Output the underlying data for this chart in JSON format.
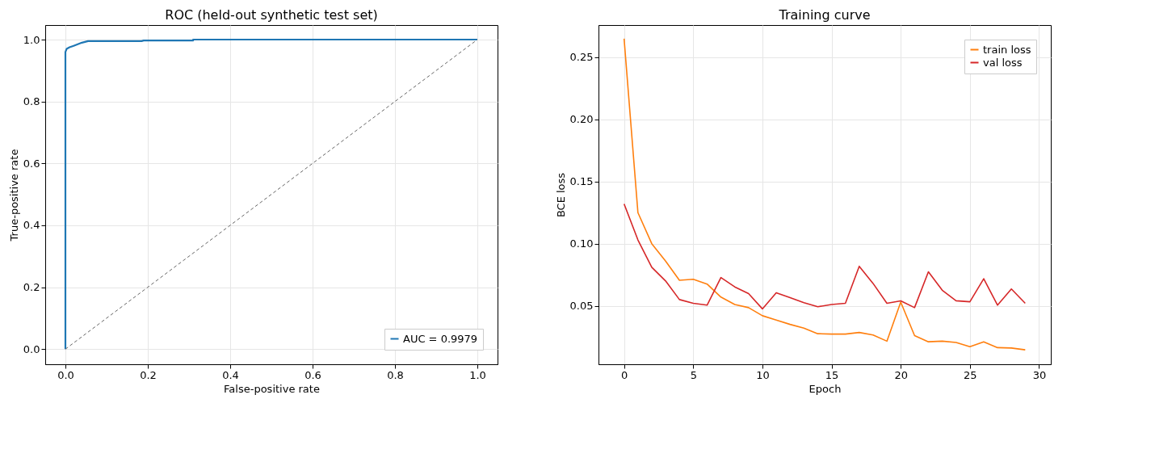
{
  "chart_data": [
    {
      "type": "line",
      "title": "ROC (held-out synthetic test set)",
      "xlabel": "False-positive rate",
      "ylabel": "True-positive rate",
      "xlim": [
        -0.049,
        1.049
      ],
      "ylim": [
        -0.049,
        1.047
      ],
      "xticks": [
        {
          "value": 0,
          "label": "0.0"
        },
        {
          "value": 0.2,
          "label": "0.2"
        },
        {
          "value": 0.4,
          "label": "0.4"
        },
        {
          "value": 0.6,
          "label": "0.6"
        },
        {
          "value": 0.8,
          "label": "0.8"
        },
        {
          "value": 1,
          "label": "1.0"
        }
      ],
      "yticks": [
        {
          "value": 0,
          "label": "0.0"
        },
        {
          "value": 0.2,
          "label": "0.2"
        },
        {
          "value": 0.4,
          "label": "0.4"
        },
        {
          "value": 0.6,
          "label": "0.6"
        },
        {
          "value": 0.8,
          "label": "0.8"
        },
        {
          "value": 1,
          "label": "1.0"
        }
      ],
      "grid": true,
      "legend": "bottom right",
      "series": [
        {
          "name": "AUC = 0.9979",
          "color": "#1f77b4",
          "x": [
            0,
            0,
            0.003,
            0.01,
            0.02,
            0.03,
            0.04,
            0.055,
            0.185,
            0.19,
            0.31,
            0.31,
            1
          ],
          "values": [
            0,
            0.96,
            0.97,
            0.975,
            0.98,
            0.985,
            0.99,
            0.995,
            0.995,
            0.997,
            0.997,
            1.0,
            1.0
          ]
        },
        {
          "color": "#666666",
          "line_style": "dashed",
          "x": [
            0,
            1
          ],
          "values": [
            0,
            1
          ]
        }
      ]
    },
    {
      "type": "line",
      "title": "Training curve",
      "xlabel": "Epoch",
      "ylabel": "BCE loss",
      "xlim": [
        -1.85,
        30.85
      ],
      "ylim": [
        0.0029,
        0.276
      ],
      "xticks": [
        0,
        5,
        10,
        15,
        20,
        25,
        30
      ],
      "yticks": [
        0.05,
        {
          "value": 0.1,
          "label": "0.10"
        },
        0.15,
        {
          "value": 0.2,
          "label": "0.20"
        },
        0.25
      ],
      "grid": true,
      "legend": "top right",
      "x": [
        0,
        1,
        2,
        3,
        4,
        5,
        6,
        7,
        8,
        9,
        10,
        11,
        12,
        13,
        14,
        15,
        16,
        17,
        18,
        19,
        20,
        21,
        22,
        23,
        24,
        25,
        26,
        27,
        28,
        29
      ],
      "series": [
        {
          "name": "train loss",
          "color": "#ff7f0e",
          "values": [
            0.265,
            0.125,
            0.1,
            0.086,
            0.0705,
            0.0713,
            0.0675,
            0.057,
            0.051,
            0.0485,
            0.042,
            0.0385,
            0.035,
            0.032,
            0.0275,
            0.0272,
            0.0272,
            0.0285,
            0.0265,
            0.0215,
            0.053,
            0.026,
            0.021,
            0.0215,
            0.0205,
            0.017,
            0.021,
            0.0163,
            0.016,
            0.0145
          ]
        },
        {
          "name": "val loss",
          "color": "#d62728",
          "values": [
            0.132,
            0.103,
            0.081,
            0.07,
            0.055,
            0.052,
            0.0505,
            0.0727,
            0.0652,
            0.0598,
            0.0475,
            0.0605,
            0.0565,
            0.0525,
            0.0492,
            0.051,
            0.052,
            0.0818,
            0.068,
            0.052,
            0.054,
            0.0485,
            0.0773,
            0.0625,
            0.054,
            0.0532,
            0.0718,
            0.0505,
            0.0635,
            0.052
          ]
        }
      ]
    }
  ]
}
